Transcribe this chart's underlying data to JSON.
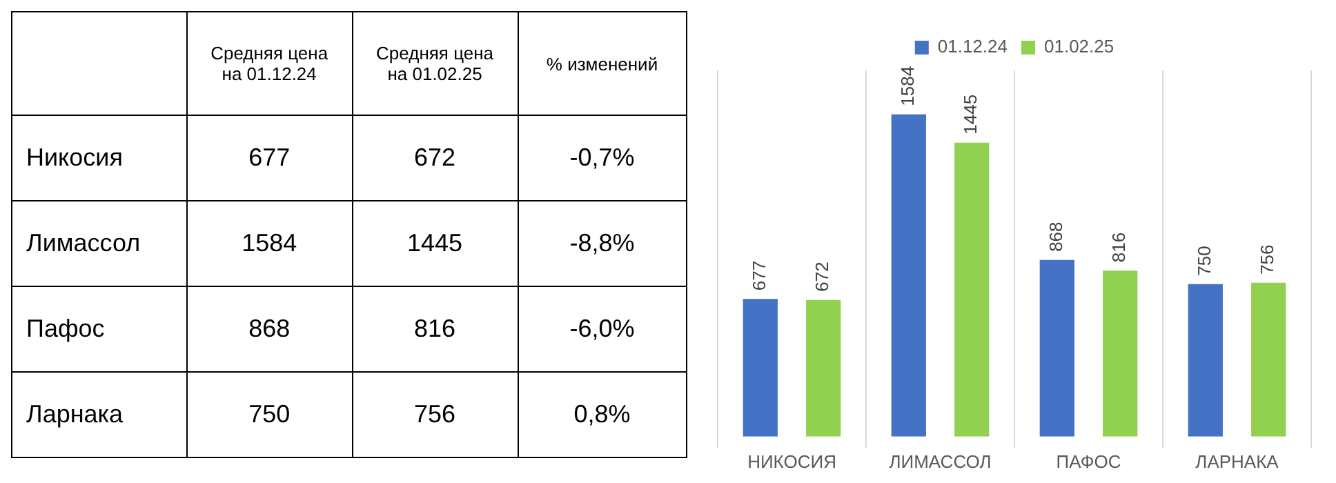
{
  "chart_data": [
    {
      "type": "other",
      "categories": [
        "Никосия",
        "Лимассол",
        "Пафос",
        "Ларнака"
      ],
      "data_labels": true,
      "series": [
        {
          "name": "Средняя цена на 01.12.24",
          "values": [
            677,
            1584,
            868,
            750
          ]
        },
        {
          "name": "Средняя цена на 01.02.25",
          "values": [
            672,
            1445,
            816,
            756
          ]
        },
        {
          "name": "% изменений",
          "values": [
            -0.7,
            -8.8,
            -6.0,
            0.8
          ],
          "value_labels": [
            "-0,7%",
            "-8,8%",
            "-6,0%",
            "0,8%"
          ]
        }
      ]
    },
    {
      "type": "bar",
      "categories": [
        "НИКОСИЯ",
        "ЛИМАССОЛ",
        "ПАФОС",
        "ЛАРНАКА"
      ],
      "data_labels": true,
      "legend": "top",
      "grid": "x",
      "series": [
        {
          "name": "01.12.24",
          "color": "#4472c4",
          "values": [
            677,
            1584,
            868,
            750
          ]
        },
        {
          "name": "01.02.25",
          "color": "#92d050",
          "values": [
            672,
            1445,
            816,
            756
          ]
        }
      ]
    }
  ]
}
